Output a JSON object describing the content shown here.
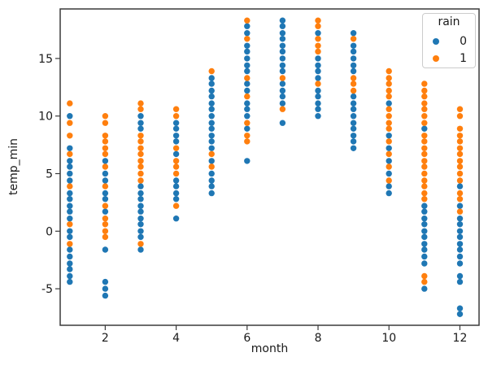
{
  "chart_data": {
    "type": "scatter",
    "title": "",
    "xlabel": "month",
    "ylabel": "temp_min",
    "x_ticks": [
      2,
      4,
      6,
      8,
      10,
      12
    ],
    "y_ticks": [
      -5,
      0,
      5,
      10,
      15
    ],
    "xlim": [
      0.73,
      12.54
    ],
    "ylim": [
      -8.17,
      19.3
    ],
    "grid": false,
    "marker_radius": 3.7,
    "legend": {
      "title": "rain",
      "position": "upper right",
      "entries": [
        {
          "label": "0",
          "color": "#1f77b4"
        },
        {
          "label": "1",
          "color": "#ff7f0e"
        }
      ]
    },
    "series": [
      {
        "name": "0",
        "color": "#1f77b4",
        "points": [
          [
            1,
            10.0
          ],
          [
            1,
            7.2
          ],
          [
            1,
            6.1
          ],
          [
            1,
            5.6
          ],
          [
            1,
            5.0
          ],
          [
            1,
            4.4
          ],
          [
            1,
            3.3
          ],
          [
            1,
            2.8
          ],
          [
            1,
            2.2
          ],
          [
            1,
            1.7
          ],
          [
            1,
            1.1
          ],
          [
            1,
            0.0
          ],
          [
            1,
            -0.5
          ],
          [
            1,
            -1.6
          ],
          [
            1,
            -2.2
          ],
          [
            1,
            -2.8
          ],
          [
            1,
            -3.3
          ],
          [
            1,
            -3.9
          ],
          [
            1,
            -4.4
          ],
          [
            2,
            6.1
          ],
          [
            2,
            5.0
          ],
          [
            2,
            4.4
          ],
          [
            2,
            3.3
          ],
          [
            2,
            2.8
          ],
          [
            2,
            1.7
          ],
          [
            2,
            -1.6
          ],
          [
            2,
            -4.4
          ],
          [
            2,
            -5.0
          ],
          [
            2,
            -5.6
          ],
          [
            3,
            10.0
          ],
          [
            3,
            9.4
          ],
          [
            3,
            8.9
          ],
          [
            3,
            3.9
          ],
          [
            3,
            3.3
          ],
          [
            3,
            2.8
          ],
          [
            3,
            2.2
          ],
          [
            3,
            1.7
          ],
          [
            3,
            1.1
          ],
          [
            3,
            0.6
          ],
          [
            3,
            0.0
          ],
          [
            3,
            -0.5
          ],
          [
            3,
            -1.6
          ],
          [
            4,
            9.4
          ],
          [
            4,
            8.9
          ],
          [
            4,
            8.3
          ],
          [
            4,
            7.8
          ],
          [
            4,
            6.7
          ],
          [
            4,
            4.4
          ],
          [
            4,
            3.9
          ],
          [
            4,
            3.3
          ],
          [
            4,
            2.8
          ],
          [
            4,
            1.1
          ],
          [
            5,
            13.3
          ],
          [
            5,
            12.8
          ],
          [
            5,
            12.2
          ],
          [
            5,
            11.7
          ],
          [
            5,
            11.1
          ],
          [
            5,
            10.6
          ],
          [
            5,
            10.0
          ],
          [
            5,
            9.4
          ],
          [
            5,
            8.9
          ],
          [
            5,
            8.3
          ],
          [
            5,
            7.8
          ],
          [
            5,
            7.2
          ],
          [
            5,
            6.1
          ],
          [
            5,
            5.0
          ],
          [
            5,
            4.4
          ],
          [
            5,
            3.9
          ],
          [
            5,
            3.3
          ],
          [
            6,
            17.8
          ],
          [
            6,
            17.2
          ],
          [
            6,
            16.1
          ],
          [
            6,
            15.6
          ],
          [
            6,
            15.0
          ],
          [
            6,
            14.4
          ],
          [
            6,
            13.9
          ],
          [
            6,
            12.8
          ],
          [
            6,
            12.2
          ],
          [
            6,
            11.1
          ],
          [
            6,
            10.6
          ],
          [
            6,
            10.0
          ],
          [
            6,
            8.9
          ],
          [
            6,
            6.1
          ],
          [
            7,
            18.3
          ],
          [
            7,
            17.8
          ],
          [
            7,
            17.2
          ],
          [
            7,
            16.7
          ],
          [
            7,
            16.1
          ],
          [
            7,
            15.6
          ],
          [
            7,
            15.0
          ],
          [
            7,
            14.4
          ],
          [
            7,
            13.9
          ],
          [
            7,
            12.8
          ],
          [
            7,
            12.2
          ],
          [
            7,
            11.7
          ],
          [
            7,
            11.1
          ],
          [
            7,
            9.4
          ],
          [
            8,
            17.2
          ],
          [
            8,
            15.0
          ],
          [
            8,
            14.4
          ],
          [
            8,
            13.9
          ],
          [
            8,
            13.3
          ],
          [
            8,
            12.2
          ],
          [
            8,
            11.7
          ],
          [
            8,
            11.1
          ],
          [
            8,
            10.6
          ],
          [
            8,
            10.0
          ],
          [
            9,
            17.2
          ],
          [
            9,
            16.1
          ],
          [
            9,
            15.6
          ],
          [
            9,
            15.0
          ],
          [
            9,
            14.4
          ],
          [
            9,
            13.9
          ],
          [
            9,
            11.7
          ],
          [
            9,
            11.1
          ],
          [
            9,
            10.6
          ],
          [
            9,
            10.0
          ],
          [
            9,
            9.4
          ],
          [
            9,
            8.9
          ],
          [
            9,
            8.3
          ],
          [
            9,
            7.8
          ],
          [
            9,
            7.2
          ],
          [
            10,
            11.1
          ],
          [
            10,
            8.3
          ],
          [
            10,
            7.2
          ],
          [
            10,
            6.1
          ],
          [
            10,
            5.0
          ],
          [
            10,
            3.9
          ],
          [
            10,
            3.3
          ],
          [
            11,
            8.9
          ],
          [
            11,
            2.2
          ],
          [
            11,
            1.7
          ],
          [
            11,
            1.1
          ],
          [
            11,
            0.6
          ],
          [
            11,
            0.0
          ],
          [
            11,
            -0.5
          ],
          [
            11,
            -1.1
          ],
          [
            11,
            -1.6
          ],
          [
            11,
            -2.2
          ],
          [
            11,
            -2.8
          ],
          [
            11,
            -5.0
          ],
          [
            12,
            3.9
          ],
          [
            12,
            2.2
          ],
          [
            12,
            1.1
          ],
          [
            12,
            0.6
          ],
          [
            12,
            0.0
          ],
          [
            12,
            -0.5
          ],
          [
            12,
            -1.1
          ],
          [
            12,
            -1.6
          ],
          [
            12,
            -2.2
          ],
          [
            12,
            -2.8
          ],
          [
            12,
            -3.9
          ],
          [
            12,
            -4.4
          ],
          [
            12,
            -6.7
          ],
          [
            12,
            -7.2
          ]
        ]
      },
      {
        "name": "1",
        "color": "#ff7f0e",
        "points": [
          [
            1,
            11.1
          ],
          [
            1,
            9.4
          ],
          [
            1,
            8.3
          ],
          [
            1,
            6.7
          ],
          [
            1,
            3.9
          ],
          [
            1,
            0.6
          ],
          [
            1,
            -1.1
          ],
          [
            2,
            10.0
          ],
          [
            2,
            9.4
          ],
          [
            2,
            8.3
          ],
          [
            2,
            7.8
          ],
          [
            2,
            7.2
          ],
          [
            2,
            6.7
          ],
          [
            2,
            5.6
          ],
          [
            2,
            3.9
          ],
          [
            2,
            2.2
          ],
          [
            2,
            1.1
          ],
          [
            2,
            0.6
          ],
          [
            2,
            0.0
          ],
          [
            2,
            -0.5
          ],
          [
            3,
            11.1
          ],
          [
            3,
            10.6
          ],
          [
            3,
            8.3
          ],
          [
            3,
            7.8
          ],
          [
            3,
            7.2
          ],
          [
            3,
            6.7
          ],
          [
            3,
            6.1
          ],
          [
            3,
            5.6
          ],
          [
            3,
            5.0
          ],
          [
            3,
            4.4
          ],
          [
            3,
            -1.1
          ],
          [
            4,
            10.6
          ],
          [
            4,
            10.0
          ],
          [
            4,
            7.2
          ],
          [
            4,
            6.1
          ],
          [
            4,
            5.6
          ],
          [
            4,
            5.0
          ],
          [
            4,
            2.2
          ],
          [
            5,
            13.9
          ],
          [
            5,
            6.7
          ],
          [
            5,
            5.6
          ],
          [
            6,
            18.3
          ],
          [
            6,
            16.7
          ],
          [
            6,
            13.3
          ],
          [
            6,
            11.7
          ],
          [
            6,
            9.4
          ],
          [
            6,
            8.3
          ],
          [
            6,
            7.8
          ],
          [
            7,
            13.3
          ],
          [
            7,
            10.6
          ],
          [
            8,
            18.3
          ],
          [
            8,
            17.8
          ],
          [
            8,
            16.7
          ],
          [
            8,
            16.1
          ],
          [
            8,
            15.6
          ],
          [
            8,
            12.8
          ],
          [
            9,
            16.7
          ],
          [
            9,
            13.3
          ],
          [
            9,
            12.8
          ],
          [
            9,
            12.2
          ],
          [
            10,
            13.9
          ],
          [
            10,
            13.3
          ],
          [
            10,
            12.8
          ],
          [
            10,
            12.2
          ],
          [
            10,
            11.7
          ],
          [
            10,
            10.6
          ],
          [
            10,
            10.0
          ],
          [
            10,
            9.4
          ],
          [
            10,
            8.9
          ],
          [
            10,
            7.8
          ],
          [
            10,
            6.7
          ],
          [
            10,
            5.6
          ],
          [
            10,
            4.4
          ],
          [
            11,
            12.8
          ],
          [
            11,
            12.2
          ],
          [
            11,
            11.7
          ],
          [
            11,
            11.1
          ],
          [
            11,
            10.6
          ],
          [
            11,
            10.0
          ],
          [
            11,
            9.4
          ],
          [
            11,
            8.3
          ],
          [
            11,
            7.8
          ],
          [
            11,
            7.2
          ],
          [
            11,
            6.7
          ],
          [
            11,
            6.1
          ],
          [
            11,
            5.6
          ],
          [
            11,
            5.0
          ],
          [
            11,
            4.4
          ],
          [
            11,
            3.9
          ],
          [
            11,
            3.3
          ],
          [
            11,
            2.8
          ],
          [
            11,
            -3.9
          ],
          [
            11,
            -4.4
          ],
          [
            12,
            10.6
          ],
          [
            12,
            10.0
          ],
          [
            12,
            8.9
          ],
          [
            12,
            8.3
          ],
          [
            12,
            7.8
          ],
          [
            12,
            7.2
          ],
          [
            12,
            6.7
          ],
          [
            12,
            6.1
          ],
          [
            12,
            5.6
          ],
          [
            12,
            5.0
          ],
          [
            12,
            4.4
          ],
          [
            12,
            3.3
          ],
          [
            12,
            2.8
          ],
          [
            12,
            1.7
          ]
        ]
      }
    ]
  }
}
